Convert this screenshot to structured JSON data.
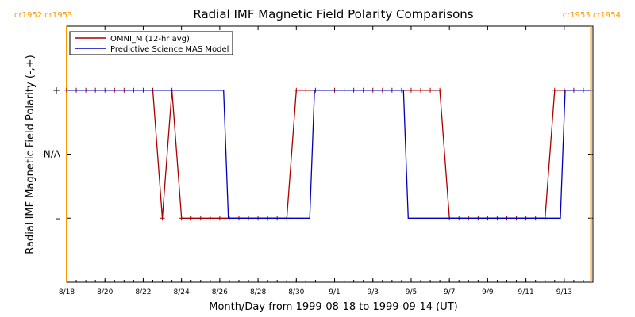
{
  "chart_data": {
    "type": "line",
    "title": "Radial IMF Magnetic Field Polarity Comparisons",
    "xlabel": "Month/Day from 1999-08-18 to 1999-09-14 (UT)",
    "ylabel": "Radial IMF Magnetic Field Polarity (-,+)",
    "x_range_days": [
      0,
      27.5
    ],
    "x_ticks": [
      {
        "day": 0,
        "label": "8/18"
      },
      {
        "day": 2,
        "label": "8/20"
      },
      {
        "day": 4,
        "label": "8/22"
      },
      {
        "day": 6,
        "label": "8/24"
      },
      {
        "day": 8,
        "label": "8/26"
      },
      {
        "day": 10,
        "label": "8/28"
      },
      {
        "day": 12,
        "label": "8/30"
      },
      {
        "day": 14,
        "label": "9/1"
      },
      {
        "day": 16,
        "label": "9/3"
      },
      {
        "day": 18,
        "label": "9/5"
      },
      {
        "day": 20,
        "label": "9/7"
      },
      {
        "day": 22,
        "label": "9/9"
      },
      {
        "day": 24,
        "label": "9/11"
      },
      {
        "day": 26,
        "label": "9/13"
      }
    ],
    "y_range": [
      -2,
      2
    ],
    "y_ticks": [
      {
        "value": 1,
        "label": "+"
      },
      {
        "value": 0,
        "label": "N/A"
      },
      {
        "value": -1,
        "label": "–"
      }
    ],
    "carrington_markers": [
      {
        "day": 0,
        "label": "cr1952 cr1953",
        "position": "left"
      },
      {
        "day": 27.4,
        "label": "cr1953 cr1954",
        "position": "right"
      }
    ],
    "legend_position": "top-left",
    "series": [
      {
        "name": "OMNI_M (12-hr avg)",
        "color": "#aa0000",
        "markers": true,
        "x": [
          0,
          0.5,
          1,
          1.5,
          2,
          2.5,
          3,
          3.5,
          4,
          4.5,
          5,
          5.5,
          6,
          6.5,
          7,
          7.5,
          8,
          8.5,
          9,
          9.5,
          10,
          10.5,
          11,
          11.5,
          12,
          12.5,
          13,
          13.5,
          14,
          14.5,
          15,
          15.5,
          16,
          16.5,
          17,
          17.5,
          18,
          18.5,
          19,
          19.5,
          20,
          20.5,
          21,
          21.5,
          22,
          22.5,
          23,
          23.5,
          24,
          24.5,
          25,
          25.5,
          26,
          26.5,
          27
        ],
        "values": [
          1,
          1,
          1,
          1,
          1,
          1,
          1,
          1,
          1,
          1,
          -1,
          1,
          -1,
          -1,
          -1,
          -1,
          -1,
          -1,
          -1,
          -1,
          -1,
          -1,
          -1,
          -1,
          1,
          1,
          1,
          1,
          1,
          1,
          1,
          1,
          1,
          1,
          1,
          1,
          1,
          1,
          1,
          1,
          -1,
          -1,
          -1,
          -1,
          -1,
          -1,
          -1,
          -1,
          -1,
          -1,
          -1,
          1,
          1,
          1,
          1
        ]
      },
      {
        "name": "Predictive Science MAS Model",
        "color": "#0000bb",
        "markers": false,
        "x": [
          0,
          8.2,
          8.45,
          12.7,
          12.95,
          17.6,
          17.85,
          25.8,
          26.05,
          27.4
        ],
        "values": [
          1,
          1,
          -1,
          -1,
          1,
          1,
          -1,
          -1,
          1,
          1
        ]
      }
    ]
  }
}
